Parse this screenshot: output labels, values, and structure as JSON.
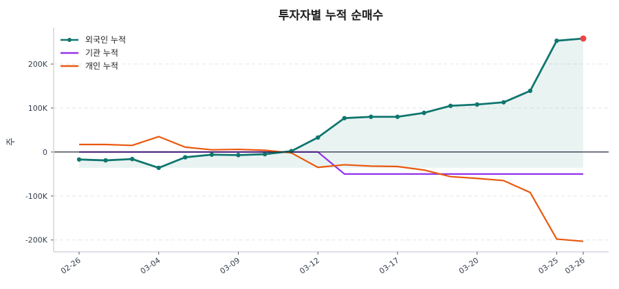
{
  "chart_data": {
    "type": "line",
    "title": "투자자별 누적 순매수",
    "xlabel": "",
    "ylabel": "주",
    "ylim": [
      -227000,
      283000
    ],
    "grid": "horizontal dashed",
    "legend_position": "top-left",
    "x": [
      "02-26",
      "02-27",
      "02-28",
      "03-04",
      "03-05",
      "03-06",
      "03-09",
      "03-10",
      "03-11",
      "03-12",
      "03-13",
      "03-16",
      "03-17",
      "03-18",
      "03-19",
      "03-20",
      "03-23",
      "03-24",
      "03-25",
      "03-26"
    ],
    "xticks": [
      "02-26",
      "03-04",
      "03-09",
      "03-12",
      "03-17",
      "03-20",
      "03-25",
      "03-26"
    ],
    "yticks": [
      {
        "value": -200000,
        "label": "-200K"
      },
      {
        "value": -100000,
        "label": "-100K"
      },
      {
        "value": 0,
        "label": "0"
      },
      {
        "value": 100000,
        "label": "100K"
      },
      {
        "value": 200000,
        "label": "200K"
      }
    ],
    "series": [
      {
        "name": "외국인 누적",
        "color": "#0f766e",
        "markers": true,
        "fill": true,
        "values": [
          -17000,
          -19000,
          -16000,
          -36000,
          -12000,
          -6000,
          -7000,
          -5000,
          2000,
          33000,
          77000,
          80000,
          80000,
          89000,
          105000,
          108000,
          113000,
          139000,
          253000,
          258000
        ]
      },
      {
        "name": "기관 누적",
        "color": "#9333ea",
        "markers": false,
        "values": [
          0,
          0,
          0,
          0,
          0,
          0,
          0,
          0,
          0,
          0,
          -50000,
          -50000,
          -50000,
          -50000,
          -50000,
          -50000,
          -50000,
          -50000,
          -50000,
          -50000
        ]
      },
      {
        "name": "개인 누적",
        "color": "#ea580c",
        "markers": false,
        "values": [
          17000,
          17000,
          15000,
          35000,
          11000,
          5000,
          6000,
          4000,
          -2000,
          -35000,
          -29000,
          -32000,
          -33000,
          -41000,
          -56000,
          -60000,
          -65000,
          -92000,
          -198000,
          -203000
        ]
      }
    ],
    "highlight_last_point_color": "#ef4444"
  }
}
